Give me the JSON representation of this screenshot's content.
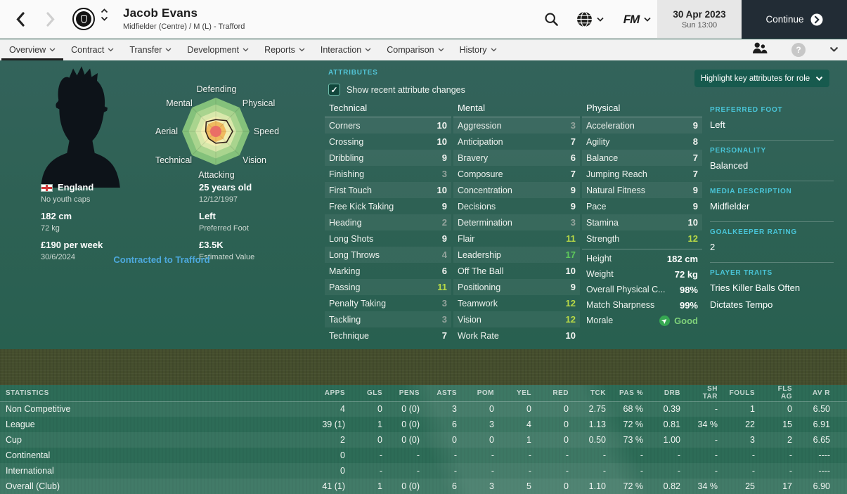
{
  "header": {
    "player_name": "Jacob Evans",
    "player_subtitle": "Midfielder (Centre) / M (L) - Trafford",
    "fm_logo": "FM",
    "date": "30 Apr 2023",
    "time": "Sun 13:00",
    "continue_label": "Continue",
    "help_label": "?"
  },
  "tabs": [
    {
      "label": "Overview",
      "active": true
    },
    {
      "label": "Contract",
      "active": false
    },
    {
      "label": "Transfer",
      "active": false
    },
    {
      "label": "Development",
      "active": false
    },
    {
      "label": "Reports",
      "active": false
    },
    {
      "label": "Interaction",
      "active": false
    },
    {
      "label": "Comparison",
      "active": false
    },
    {
      "label": "History",
      "active": false
    }
  ],
  "icons": {
    "topbar": [
      "back-icon",
      "forward-icon",
      "club-badge",
      "stepper-up-icon",
      "stepper-down-icon",
      "search-icon",
      "globe-icon",
      "chevron-down-icon",
      "continue-arrow-icon"
    ],
    "tabbar": [
      "people-icon",
      "help-icon",
      "chevron-down-icon"
    ],
    "morale": "arrow-up-right-in-green-circle"
  },
  "player": {
    "nation": "England",
    "youth_caps": "No youth caps",
    "age": "25 years old",
    "birth_date": "12/12/1997",
    "height": "182 cm",
    "weight": "72 kg",
    "foot": "Left",
    "foot_label": "Preferred Foot",
    "wage": "£190 per week",
    "contract_end": "30/6/2024",
    "value": "£3.5K",
    "value_label": "Estimated Value",
    "contract_note": "Contracted to Trafford"
  },
  "radar": {
    "type": "radar",
    "axes": [
      "Defending",
      "Physical",
      "Speed",
      "Vision",
      "Attacking",
      "Technical",
      "Aerial",
      "Mental"
    ],
    "values": [
      7,
      9,
      10,
      9,
      7,
      6,
      6,
      8
    ],
    "max": 20
  },
  "attributes": {
    "section_label": "ATTRIBUTES",
    "checkbox_label": "Show recent attribute changes",
    "highlight_button": "Highlight key attributes for role",
    "groups": [
      {
        "name": "Technical",
        "items": [
          [
            "Corners",
            10
          ],
          [
            "Crossing",
            10
          ],
          [
            "Dribbling",
            9
          ],
          [
            "Finishing",
            3
          ],
          [
            "First Touch",
            10
          ],
          [
            "Free Kick Taking",
            9
          ],
          [
            "Heading",
            2
          ],
          [
            "Long Shots",
            9
          ],
          [
            "Long Throws",
            4
          ],
          [
            "Marking",
            6
          ],
          [
            "Passing",
            11
          ],
          [
            "Penalty Taking",
            3
          ],
          [
            "Tackling",
            3
          ],
          [
            "Technique",
            7
          ]
        ]
      },
      {
        "name": "Mental",
        "items": [
          [
            "Aggression",
            3
          ],
          [
            "Anticipation",
            7
          ],
          [
            "Bravery",
            6
          ],
          [
            "Composure",
            7
          ],
          [
            "Concentration",
            9
          ],
          [
            "Decisions",
            9
          ],
          [
            "Determination",
            3
          ],
          [
            "Flair",
            11
          ],
          [
            "Leadership",
            17
          ],
          [
            "Off The Ball",
            10
          ],
          [
            "Positioning",
            9
          ],
          [
            "Teamwork",
            12
          ],
          [
            "Vision",
            12
          ],
          [
            "Work Rate",
            10
          ]
        ]
      },
      {
        "name": "Physical",
        "items": [
          [
            "Acceleration",
            9
          ],
          [
            "Agility",
            8
          ],
          [
            "Balance",
            7
          ],
          [
            "Jumping Reach",
            7
          ],
          [
            "Natural Fitness",
            9
          ],
          [
            "Pace",
            9
          ],
          [
            "Stamina",
            10
          ],
          [
            "Strength",
            12
          ]
        ]
      }
    ],
    "physical_info": [
      [
        "Height",
        "182 cm"
      ],
      [
        "Weight",
        "72 kg"
      ],
      [
        "Overall Physical C...",
        "98%"
      ],
      [
        "Match Sharpness",
        "99%"
      ]
    ],
    "morale_label": "Morale",
    "morale_value": "Good"
  },
  "sidebar": {
    "sections": [
      {
        "heading": "PREFERRED FOOT",
        "lines": [
          "Left"
        ]
      },
      {
        "heading": "PERSONALITY",
        "lines": [
          "Balanced"
        ]
      },
      {
        "heading": "MEDIA DESCRIPTION",
        "lines": [
          "Midfielder"
        ]
      },
      {
        "heading": "GOALKEEPER RATING",
        "lines": [
          "2"
        ]
      },
      {
        "heading": "PLAYER TRAITS",
        "lines": [
          "Tries Killer Balls Often",
          "Dictates Tempo"
        ]
      }
    ]
  },
  "statistics": {
    "title": "STATISTICS",
    "columns": [
      "APPS",
      "GLS",
      "PENS",
      "ASTS",
      "POM",
      "YEL",
      "RED",
      "TCK",
      "PAS %",
      "DRB",
      "SH TAR",
      "FOULS",
      "FLS AG",
      "AV R"
    ],
    "rows": [
      {
        "label": "Non Competitive",
        "values": [
          "4",
          "0",
          "0 (0)",
          "3",
          "0",
          "0",
          "0",
          "2.75",
          "68 %",
          "0.39",
          "-",
          "1",
          "0",
          "6.50"
        ]
      },
      {
        "label": "League",
        "values": [
          "39 (1)",
          "1",
          "0 (0)",
          "6",
          "3",
          "4",
          "0",
          "1.13",
          "72 %",
          "0.81",
          "34 %",
          "22",
          "15",
          "6.91"
        ]
      },
      {
        "label": "Cup",
        "values": [
          "2",
          "0",
          "0 (0)",
          "0",
          "0",
          "1",
          "0",
          "0.50",
          "73 %",
          "1.00",
          "-",
          "3",
          "2",
          "6.65"
        ]
      },
      {
        "label": "Continental",
        "values": [
          "0",
          "-",
          "-",
          "-",
          "-",
          "-",
          "-",
          "-",
          "-",
          "-",
          "-",
          "-",
          "-",
          "----"
        ]
      },
      {
        "label": "International",
        "values": [
          "0",
          "-",
          "-",
          "-",
          "-",
          "-",
          "-",
          "-",
          "-",
          "-",
          "-",
          "-",
          "-",
          "----"
        ]
      },
      {
        "label": "Overall (Club)",
        "values": [
          "41 (1)",
          "1",
          "0 (0)",
          "6",
          "3",
          "5",
          "0",
          "1.10",
          "72 %",
          "0.82",
          "34 %",
          "25",
          "17",
          "6.90"
        ]
      }
    ]
  },
  "colors": {
    "accent_teal_heading": "#49c5d8",
    "link_blue": "#4da9de",
    "attr_low": "#94a49d",
    "attr_mid": "#f2f4f1",
    "attr_good": "#b8d946",
    "attr_high": "#5ec95b",
    "morale_good": "#36a852",
    "continue_bg": "#222c35",
    "pitch_dark_band": "#454e2d",
    "main_bg": "#2e6154"
  }
}
